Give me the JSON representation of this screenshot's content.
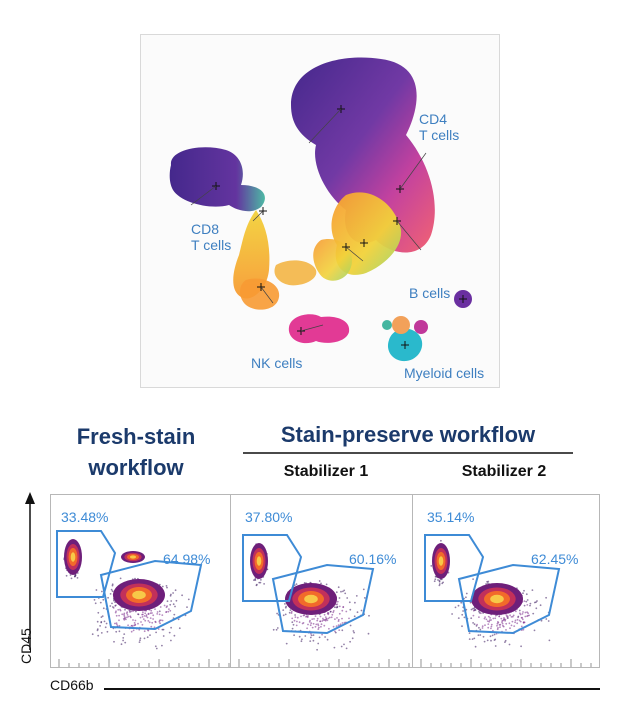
{
  "umap": {
    "populations": [
      {
        "id": "cd4",
        "label": "CD4\nT cells"
      },
      {
        "id": "cd8",
        "label": "CD8\nT cells"
      },
      {
        "id": "b",
        "label": "B cells"
      },
      {
        "id": "nk",
        "label": "NK cells"
      },
      {
        "id": "myeloid",
        "label": "Myeloid cells"
      }
    ],
    "colors": [
      "#3b1d86",
      "#6a2fa0",
      "#c0389a",
      "#f25b6b",
      "#f79a33",
      "#f2d23a",
      "#44b6a0",
      "#1fb5c9"
    ]
  },
  "headers": {
    "fresh": "Fresh-stain\nworkflow",
    "preserve": "Stain-preserve workflow",
    "stabilizer1": "Stabilizer 1",
    "stabilizer2": "Stabilizer 2"
  },
  "axes": {
    "y": "CD45",
    "x": "CD66b"
  },
  "gate_color": "#3e8bd6",
  "chart_data": [
    {
      "type": "scatter",
      "title": "Fresh-stain workflow",
      "xlabel": "CD66b",
      "ylabel": "CD45",
      "gates": [
        {
          "name": "upper-left gate",
          "percent": "33.48%"
        },
        {
          "name": "main gate",
          "percent": "64.98%"
        }
      ]
    },
    {
      "type": "scatter",
      "title": "Stabilizer 1",
      "xlabel": "CD66b",
      "ylabel": "CD45",
      "gates": [
        {
          "name": "upper-left gate",
          "percent": "37.80%"
        },
        {
          "name": "main gate",
          "percent": "60.16%"
        }
      ]
    },
    {
      "type": "scatter",
      "title": "Stabilizer 2",
      "xlabel": "CD66b",
      "ylabel": "CD45",
      "gates": [
        {
          "name": "upper-left gate",
          "percent": "35.14%"
        },
        {
          "name": "main gate",
          "percent": "62.45%"
        }
      ]
    }
  ]
}
